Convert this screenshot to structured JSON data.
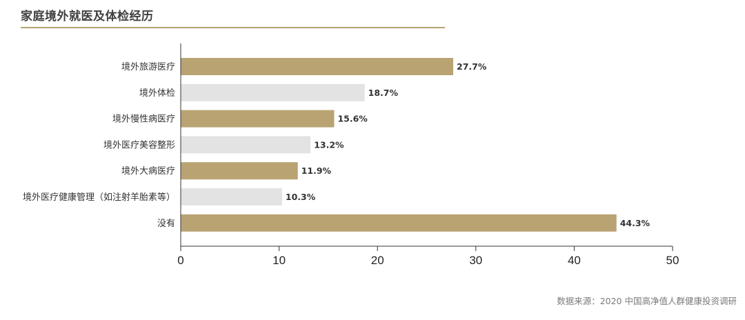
{
  "title": "家庭境外就医及体检经历",
  "source": "数据来源：2020 中国高净值人群健康投资调研",
  "colors": {
    "highlight": "#b9a373",
    "muted": "#e3e3e3",
    "axis": "#333333",
    "rule": "#b5a173"
  },
  "chart_data": {
    "type": "bar",
    "orientation": "horizontal",
    "categories": [
      "境外旅游医疗",
      "境外体检",
      "境外慢性病医疗",
      "境外医疗美容整形",
      "境外大病医疗",
      "境外医疗健康管理（如注射羊胎素等）",
      "没有"
    ],
    "values": [
      27.7,
      18.7,
      15.6,
      13.2,
      11.9,
      10.3,
      44.3
    ],
    "labels": [
      "27.7%",
      "18.7%",
      "15.6%",
      "13.2%",
      "11.9%",
      "10.3%",
      "44.3%"
    ],
    "bar_color_keys": [
      "highlight",
      "muted",
      "highlight",
      "muted",
      "highlight",
      "muted",
      "highlight"
    ],
    "xlim": [
      0,
      50
    ],
    "xticks": [
      0,
      10,
      20,
      30,
      40,
      50
    ],
    "grid": false,
    "legend": "none"
  }
}
